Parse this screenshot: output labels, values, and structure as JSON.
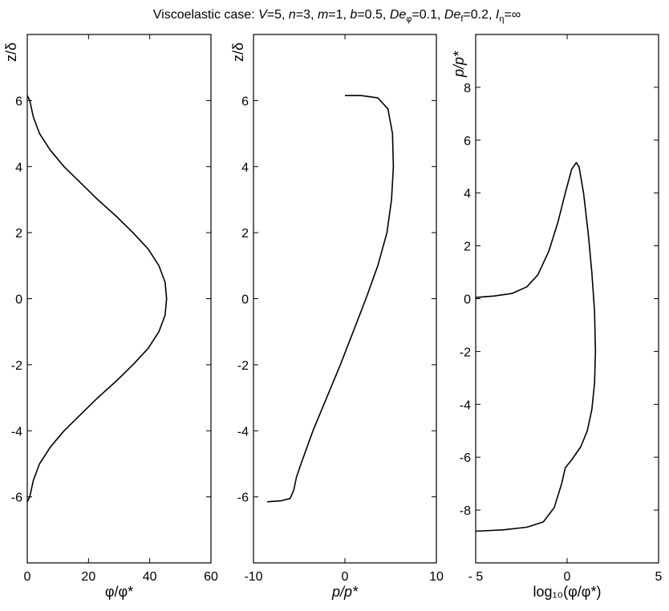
{
  "title": {
    "prefix": "Viscoelastic case: ",
    "V_sym": "V",
    "V_val": "=5, ",
    "n_sym": "n",
    "n_val": "=3, ",
    "m_sym": "m",
    "m_val": "=1, ",
    "b_sym": "b",
    "b_val": "=0.5, ",
    "Dephi_sym": "De",
    "Dephi_sub": "φ",
    "Dephi_val": "=0.1, ",
    "Def_sym": "De",
    "Def_sub": "f",
    "Def_val": "=0.2, ",
    "I_sym": "I",
    "I_sub": "η",
    "I_val": "=∞"
  },
  "chart_data": [
    {
      "type": "line",
      "xlabel": "φ/φ*",
      "ylabel": "z/δ",
      "xlim": [
        0,
        60
      ],
      "ylim": [
        -8,
        8
      ],
      "x_ticks": [
        "0",
        "20",
        "40",
        "60"
      ],
      "y_ticks": [
        "-6",
        "-4",
        "-2",
        "0",
        "2",
        "4",
        "6"
      ],
      "series": [
        {
          "x": [
            0,
            0.8,
            2.0,
            4.0,
            7.5,
            12.0,
            17.5,
            23.0,
            29.0,
            34.5,
            39.5,
            43.0,
            45.0,
            45.5,
            45.0,
            43.0,
            39.5,
            34.5,
            29.0,
            23.0,
            17.5,
            12.0,
            7.5,
            4.0,
            2.0,
            0.8,
            0
          ],
          "y": [
            6.15,
            6.0,
            5.5,
            5.0,
            4.5,
            4.0,
            3.5,
            3.0,
            2.5,
            2.0,
            1.5,
            1.0,
            0.5,
            0.0,
            -0.5,
            -1.0,
            -1.5,
            -2.0,
            -2.5,
            -3.0,
            -3.5,
            -4.0,
            -4.5,
            -5.0,
            -5.5,
            -6.0,
            -6.15
          ]
        }
      ],
      "grid": false
    },
    {
      "type": "line",
      "xlabel": "p/p*",
      "ylabel": "z/δ",
      "xlim": [
        -10,
        10
      ],
      "ylim": [
        -8,
        8
      ],
      "x_ticks": [
        "-10",
        "0",
        "10"
      ],
      "y_ticks": [
        "-6",
        "-4",
        "-2",
        "0",
        "2",
        "4",
        "6"
      ],
      "series": [
        {
          "x": [
            -8.5,
            -7.0,
            -6.0,
            -5.6,
            -5.3,
            -4.8,
            -3.5,
            -2.0,
            -0.5,
            0.9,
            2.3,
            3.6,
            4.6,
            5.1,
            5.3,
            5.2,
            4.7,
            3.6,
            1.8,
            0.0
          ],
          "y": [
            -6.15,
            -6.12,
            -6.05,
            -5.8,
            -5.4,
            -5.0,
            -4.0,
            -3.0,
            -2.0,
            -1.0,
            0.0,
            1.0,
            2.0,
            3.0,
            4.0,
            5.0,
            5.75,
            6.08,
            6.15,
            6.15
          ]
        }
      ],
      "grid": false
    },
    {
      "type": "line",
      "xlabel": "log₁₀(φ/φ*)",
      "ylabel": "p/p*",
      "xlim": [
        -5,
        5
      ],
      "ylim": [
        -10,
        10
      ],
      "x_ticks": [
        "- 5",
        "0",
        "5"
      ],
      "y_ticks": [
        "-8",
        "-6",
        "-4",
        "-2",
        "0",
        "2",
        "4",
        "6",
        "8"
      ],
      "series": [
        {
          "x": [
            -5.0,
            -4.0,
            -3.0,
            -2.2,
            -1.6,
            -1.0,
            -0.5,
            -0.1,
            0.25,
            0.5,
            0.65,
            0.9,
            1.15,
            1.35,
            1.5,
            1.55,
            1.5,
            1.35,
            1.1,
            0.75,
            0.25,
            -0.1,
            -0.3,
            -0.7,
            -1.3,
            -2.2,
            -3.5,
            -5.0
          ],
          "y": [
            0.05,
            0.1,
            0.2,
            0.45,
            0.9,
            1.8,
            2.9,
            4.0,
            4.9,
            5.15,
            5.0,
            4.0,
            2.5,
            1.0,
            -0.5,
            -2.0,
            -3.2,
            -4.2,
            -5.0,
            -5.6,
            -6.1,
            -6.4,
            -7.0,
            -7.9,
            -8.45,
            -8.65,
            -8.75,
            -8.8
          ]
        }
      ],
      "grid": false
    }
  ]
}
